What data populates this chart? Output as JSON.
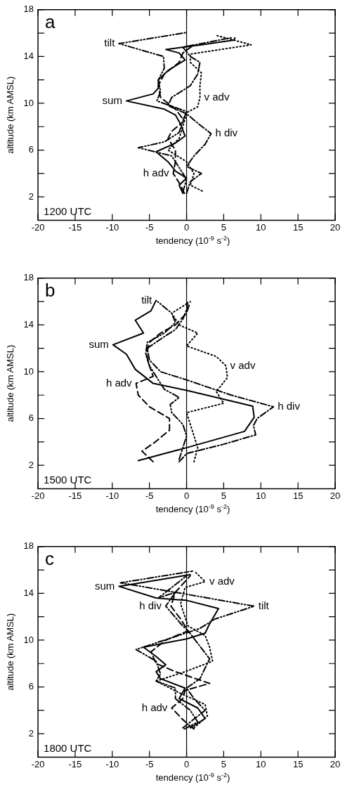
{
  "chart_data": [
    {
      "type": "line",
      "title": "a",
      "xlabel": "tendency (10$^{-9}$ s$^{-2}$)",
      "ylabel": "altitude (km AMSL)",
      "xlim": [
        -20,
        20
      ],
      "xticks": [
        -20,
        -15,
        -10,
        -5,
        0,
        5,
        10,
        15,
        20
      ],
      "ylim": [
        0,
        18
      ],
      "yticks": [
        2,
        {
          "value": 4,
          "label": null
        },
        6,
        {
          "value": 8,
          "label": null
        },
        10,
        {
          "value": 12,
          "label": null
        },
        14,
        {
          "value": 16,
          "label": null
        },
        18
      ],
      "grid": false,
      "legend": false,
      "marker": "none",
      "ref_lines": [
        {
          "axis": "x",
          "value": 0,
          "color": "#000000"
        }
      ],
      "annotations": [
        "1200 UTC",
        {
          "text": "tilt",
          "x": -9.1,
          "y": 15.1
        },
        {
          "text": "sum",
          "x": -8.1,
          "y": 10.2
        },
        {
          "text": "v adv",
          "x": 1.8,
          "y": 10.5
        },
        {
          "text": "h div",
          "x": 3.3,
          "y": 7.4
        },
        {
          "text": "h adv",
          "x": -1.8,
          "y": 4.0
        }
      ],
      "series": [
        {
          "type": "line",
          "color": "#000000",
          "line_style": "solid",
          "x": [
            -0.5,
            -1.0,
            0,
            -1.5,
            -2.5,
            -4.1,
            -1.5,
            -0.2,
            -0.8,
            -1.5,
            -3,
            -8.1,
            -4.5,
            -3.8,
            -3.8,
            -2.5,
            -0.2,
            -1,
            -2.8,
            2.0,
            6.4,
            6.5
          ],
          "values": [
            2.3,
            3,
            3.6,
            4.2,
            5.0,
            5.85,
            6.6,
            7.2,
            8.2,
            9.0,
            9.5,
            10.2,
            10.8,
            11.3,
            12.0,
            12.8,
            13.7,
            14.3,
            14.6,
            15.0,
            15.4,
            15.6
          ]
        },
        {
          "type": "line",
          "color": "#000000",
          "line_style": "dashdotdot",
          "x": [
            -0.5,
            0,
            -1,
            -2,
            -6.5,
            -3,
            -1,
            -0.5,
            0,
            -4,
            -3.5,
            -3.8,
            -3.0,
            -3.1,
            -9.1,
            0
          ],
          "values": [
            2.4,
            3.5,
            4.5,
            5.5,
            6.2,
            6.7,
            7.5,
            8.5,
            9.3,
            10.2,
            11,
            12,
            13,
            14.0,
            15.1,
            16.05
          ]
        },
        {
          "type": "line",
          "color": "#000000",
          "line_style": "dotted",
          "x": [
            2.1,
            0.5,
            1.0,
            0,
            -2.5,
            -1,
            -0.5,
            0,
            1.5,
            1.8,
            1.8,
            2,
            0.5,
            0.5,
            8.7,
            4
          ],
          "values": [
            2.5,
            3.0,
            4.0,
            5.0,
            6.0,
            7.0,
            8.0,
            9.2,
            9.7,
            10.5,
            11.5,
            12.6,
            13.5,
            14.2,
            15.0,
            15.8
          ]
        },
        {
          "type": "line",
          "color": "#000000",
          "line_style": "dashdot",
          "x": [
            0,
            0.5,
            2,
            0,
            1,
            2.5,
            3.3,
            1.5,
            0,
            -2.5,
            -2,
            0.5,
            1.5,
            1.8,
            0.5,
            -0.5,
            6.0
          ],
          "values": [
            2.3,
            3.3,
            4.0,
            4.6,
            5.5,
            6.5,
            7.4,
            8.3,
            9.1,
            9.8,
            10.5,
            11.5,
            12.5,
            13.5,
            14.0,
            14.8,
            15.6
          ]
        },
        {
          "type": "line",
          "color": "#000000",
          "line_style": "dashed",
          "x": [
            -0.3,
            -0.8,
            -1.8,
            -1.5,
            -1.5,
            -2.5,
            -2.0,
            -0.3,
            -1.5,
            -3.5,
            -3.8,
            -3.0,
            -1,
            -0.5,
            1
          ],
          "values": [
            2.3,
            3.0,
            4.0,
            5.0,
            6.0,
            7.0,
            7.6,
            8.5,
            9.5,
            10.5,
            11.5,
            12.5,
            13.5,
            14.3,
            15.0
          ]
        }
      ]
    },
    {
      "type": "line",
      "title": "b",
      "xlabel": "tendency (10$^{-9}$ s$^{-2}$)",
      "ylabel": "altitude (km AMSL)",
      "xlim": [
        -20,
        20
      ],
      "xticks": [
        -20,
        -15,
        -10,
        -5,
        0,
        5,
        10,
        15,
        20
      ],
      "ylim": [
        0,
        18
      ],
      "yticks": [
        2,
        {
          "value": 4,
          "label": null
        },
        6,
        {
          "value": 8,
          "label": null
        },
        10,
        {
          "value": 12,
          "label": null
        },
        14,
        {
          "value": 16,
          "label": null
        },
        18
      ],
      "grid": false,
      "legend": false,
      "marker": "none",
      "ref_lines": [
        {
          "axis": "x",
          "value": 0,
          "color": "#000000"
        }
      ],
      "annotations": [
        "1500 UTC",
        {
          "text": "tilt",
          "x": -4.1,
          "y": 16.1
        },
        {
          "text": "sum",
          "x": -9.9,
          "y": 12.3
        },
        {
          "text": "v adv",
          "x": 5.3,
          "y": 10.5
        },
        {
          "text": "h adv",
          "x": -6.8,
          "y": 9.0
        },
        {
          "text": "h div",
          "x": 11.7,
          "y": 7.0
        }
      ],
      "series": [
        {
          "type": "line",
          "color": "#000000",
          "line_style": "solid",
          "x": [
            -6.5,
            -3,
            0,
            7.8,
            9.1,
            8.9,
            0,
            -4.5,
            -6.9,
            -8.1,
            -9.9,
            -5.8,
            -6.9,
            -4.8,
            -4.1
          ],
          "values": [
            2.4,
            3.0,
            3.5,
            4.9,
            6.1,
            7.05,
            8.4,
            9.0,
            10.2,
            11.5,
            12.3,
            13.3,
            14.4,
            15.2,
            16.1
          ]
        },
        {
          "type": "line",
          "color": "#000000",
          "line_style": "dashdotdot",
          "x": [
            -1,
            -0.5,
            0,
            -0.5,
            -2,
            -2.2,
            -1,
            -3,
            -4,
            -5,
            -5.5,
            -5.3,
            -3,
            -1.5,
            -2,
            -4.1
          ],
          "values": [
            2.5,
            3.5,
            4.5,
            5.5,
            6.5,
            7.2,
            7.8,
            8.5,
            9.5,
            10.5,
            11.5,
            12.5,
            13.3,
            14.2,
            15.0,
            16.1
          ]
        },
        {
          "type": "line",
          "color": "#000000",
          "line_style": "dotted",
          "x": [
            1,
            1.5,
            1.0,
            0.5,
            0,
            5,
            4,
            5.5,
            5.3,
            4,
            0,
            1.5,
            -1,
            -2,
            0
          ],
          "values": [
            2.3,
            3.5,
            4.5,
            5.5,
            6.5,
            7.3,
            8.3,
            9.5,
            10.5,
            11.3,
            12.2,
            13.3,
            14.0,
            15.0,
            15.8
          ]
        },
        {
          "type": "line",
          "color": "#000000",
          "line_style": "dashdot",
          "x": [
            -1,
            0,
            5,
            9.3,
            9.0,
            9.5,
            11.7,
            6,
            0,
            -3.5,
            -5,
            -5.3,
            -3,
            -1.5,
            -0.5,
            0,
            0.2
          ],
          "values": [
            2.3,
            3.0,
            3.8,
            4.6,
            5.4,
            6.0,
            7.0,
            8.0,
            9.3,
            10.0,
            11.0,
            12.0,
            13.0,
            13.6,
            14.5,
            15.3,
            16.1
          ]
        },
        {
          "type": "line",
          "color": "#000000",
          "line_style": "dashed",
          "x": [
            -4.5,
            -6,
            -4.2,
            -2.3,
            -2.3,
            -5,
            -6.5,
            -6.8,
            -4.5,
            -5,
            -5.4,
            -5,
            -3.5,
            -1.5,
            0,
            0.5
          ],
          "values": [
            2.3,
            3.2,
            4.0,
            5.0,
            6.0,
            7.0,
            8.0,
            9.0,
            9.6,
            10.5,
            11.5,
            12.5,
            13.3,
            14.0,
            15.0,
            16.0
          ]
        }
      ]
    },
    {
      "type": "line",
      "title": "c",
      "xlabel": "tendency (10$^{-9}$ s$^{-2}$)",
      "ylabel": "altitude (km AMSL)",
      "xlim": [
        -20,
        20
      ],
      "xticks": [
        -20,
        -15,
        -10,
        -5,
        0,
        5,
        10,
        15,
        20
      ],
      "ylim": [
        0,
        18
      ],
      "yticks": [
        2,
        {
          "value": 4,
          "label": null
        },
        6,
        {
          "value": 8,
          "label": null
        },
        10,
        {
          "value": 12,
          "label": null
        },
        14,
        {
          "value": 16,
          "label": null
        },
        18
      ],
      "grid": false,
      "legend": false,
      "marker": "none",
      "ref_lines": [
        {
          "axis": "x",
          "value": 0,
          "color": "#000000"
        }
      ],
      "annotations": [
        "1800 UTC",
        {
          "text": "v adv",
          "x": 2.5,
          "y": 15.0
        },
        {
          "text": "sum",
          "x": -9.1,
          "y": 14.6
        },
        {
          "text": "tilt",
          "x": 9.1,
          "y": 12.9
        },
        {
          "text": "h div",
          "x": -2.8,
          "y": 12.9
        },
        {
          "text": "h adv",
          "x": -2,
          "y": 4.2
        }
      ],
      "series": [
        {
          "type": "line",
          "color": "#000000",
          "line_style": "solid",
          "x": [
            0.5,
            2.5,
            1.5,
            -1,
            -0.2,
            -3.5,
            -4.1,
            -2.8,
            -4.1,
            -5.8,
            0,
            2.5,
            3.1,
            4.3,
            0,
            -4.1,
            -9.1,
            0.5
          ],
          "values": [
            2.5,
            3.3,
            4.2,
            5.0,
            5.9,
            6.7,
            7.3,
            7.9,
            8.6,
            9.4,
            10.1,
            10.6,
            11.4,
            12.7,
            13.4,
            13.6,
            14.6,
            15.6
          ]
        },
        {
          "type": "line",
          "color": "#000000",
          "line_style": "dashdotdot",
          "x": [
            -0.3,
            1.5,
            0.5,
            -1.5,
            -1.5,
            -4.1,
            -3.5,
            -4.1,
            -6.8,
            1.8,
            3.8,
            9.1,
            0.2,
            -8.9,
            0.8
          ],
          "values": [
            2.4,
            3.0,
            4.0,
            5.0,
            5.9,
            6.5,
            7.1,
            8.2,
            9.2,
            11.0,
            11.8,
            12.9,
            13.9,
            14.9,
            15.9
          ]
        },
        {
          "type": "line",
          "color": "#000000",
          "line_style": "dotted",
          "x": [
            1,
            2.8,
            2.5,
            -1,
            -4.1,
            -0.2,
            3.5,
            3.1,
            2.5,
            0.2,
            -0.8,
            -0.2,
            2.5,
            1.2
          ],
          "values": [
            2.5,
            3.5,
            4.5,
            5.5,
            6.5,
            7.3,
            8.2,
            9.4,
            10.4,
            11.2,
            13.1,
            14.5,
            15.0,
            15.8
          ]
        },
        {
          "type": "line",
          "color": "#000000",
          "line_style": "dashdot",
          "x": [
            -0.5,
            0.5,
            2.5,
            1,
            0,
            1.8,
            3.1,
            0.2,
            -0.5,
            -2.8,
            -1.5,
            -3.8,
            0
          ],
          "values": [
            2.5,
            3.0,
            4.0,
            5.0,
            5.9,
            6.7,
            8.4,
            10.8,
            11.2,
            12.9,
            14.1,
            13.6,
            15.5
          ]
        },
        {
          "type": "line",
          "color": "#000000",
          "line_style": "dashed",
          "x": [
            1,
            -0.5,
            -2,
            -0.5,
            -0.2,
            3.1,
            -1.5,
            -4.1,
            -4.8,
            -2.8,
            0.2,
            -0.8,
            -2.1,
            -1.5,
            0.5
          ],
          "values": [
            2.4,
            3.2,
            4.2,
            5.0,
            5.7,
            6.3,
            7.3,
            8.0,
            9.0,
            10.0,
            10.8,
            11.8,
            12.9,
            14.1,
            15.5
          ]
        }
      ]
    }
  ]
}
